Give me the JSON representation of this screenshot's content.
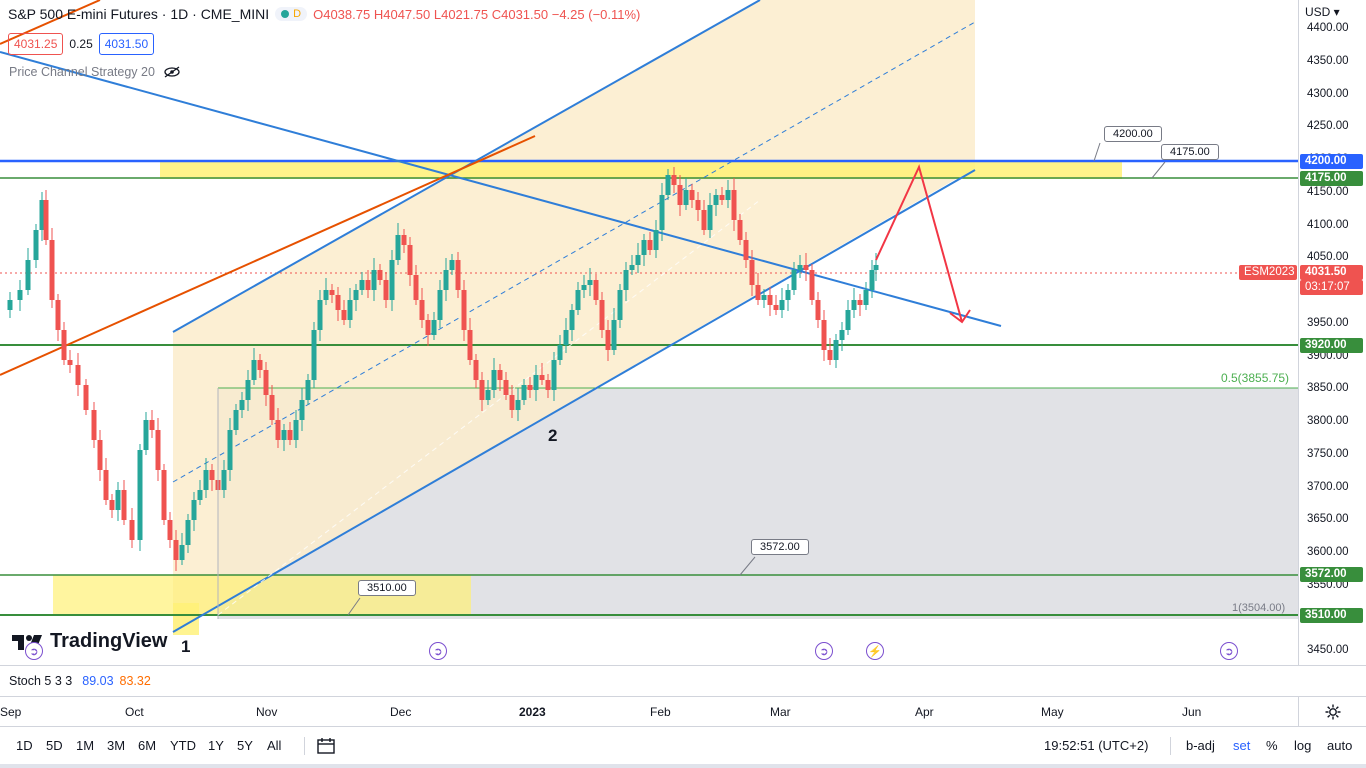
{
  "legend": {
    "title": "S&P 500 E-mini Futures · 1D · CME_MINI",
    "market_badge": "D",
    "open": "O4038.75",
    "high": "H4047.50",
    "low": "L4021.75",
    "close": "C4031.50",
    "change": "−4.25 (−0.11%)",
    "bid": "4031.25",
    "spread": "0.25",
    "ask": "4031.50"
  },
  "indicator": {
    "name": "Price Channel Strategy 20",
    "icon": "eye-crossed-icon"
  },
  "stoch": {
    "name": "Stoch 5 3 3",
    "k": "89.03",
    "d": "83.32"
  },
  "price_scale": {
    "currency": "USD",
    "ticks": [
      "4400.00",
      "4350.00",
      "4300.00",
      "4250.00",
      "4200.00",
      "4150.00",
      "4100.00",
      "4050.00",
      "4000.00",
      "3950.00",
      "3900.00",
      "3850.00",
      "3800.00",
      "3750.00",
      "3700.00",
      "3650.00",
      "3600.00",
      "3550.00",
      "3500.00",
      "3450.00"
    ],
    "tags": {
      "level_4200": "4200.00",
      "level_4175": "4175.00",
      "symbol": "ESM2023",
      "last_price": "4031.50",
      "countdown": "03:17:07",
      "level_3920": "3920.00",
      "level_3572": "3572.00",
      "level_3510": "3510.00"
    }
  },
  "time_axis": {
    "labels": [
      "Sep",
      "Oct",
      "Nov",
      "Dec",
      "2023",
      "Feb",
      "Mar",
      "Apr",
      "May",
      "Jun"
    ]
  },
  "annotations": {
    "callout_4200": "4200.00",
    "callout_4175": "4175.00",
    "callout_3572": "3572.00",
    "callout_3510": "3510.00",
    "fib_05": "0.5(3855.75)",
    "fib_1": "1(3504.00)",
    "wave_1": "1",
    "wave_2": "2"
  },
  "logo": {
    "text": "TradingView"
  },
  "bottom_bar": {
    "ranges": [
      "1D",
      "5D",
      "1M",
      "3M",
      "6M",
      "YTD",
      "1Y",
      "5Y",
      "All"
    ],
    "compare_icon": "calendar-range-icon",
    "clock": "19:52:51 (UTC+2)",
    "badj": "b-adj",
    "set": "set",
    "percent": "%",
    "log": "log",
    "auto": "auto"
  },
  "colors": {
    "up": "#26a69a",
    "down": "#ef5350",
    "channel_blue": "#2f7ed8",
    "level_blue": "#2962ff",
    "level_green": "#388e3c",
    "trend_orange": "#e65100",
    "projection_red": "#f23645",
    "channel_fill": "#fbeccb",
    "highlight_yellow": "#fff176",
    "zone_grey": "#e1e2e6"
  },
  "chart_data": {
    "type": "candlestick",
    "series": [
      {
        "name": "ESM2023",
        "close": 4031.5
      }
    ],
    "levels": [
      4200.0,
      4175.0,
      3920.0,
      3855.75,
      3572.0,
      3510.0
    ],
    "ylim": [
      3450,
      4400
    ],
    "x_categories": [
      "Sep",
      "Oct",
      "Nov",
      "Dec",
      "2023",
      "Feb",
      "Mar",
      "Apr",
      "May",
      "Jun"
    ]
  }
}
